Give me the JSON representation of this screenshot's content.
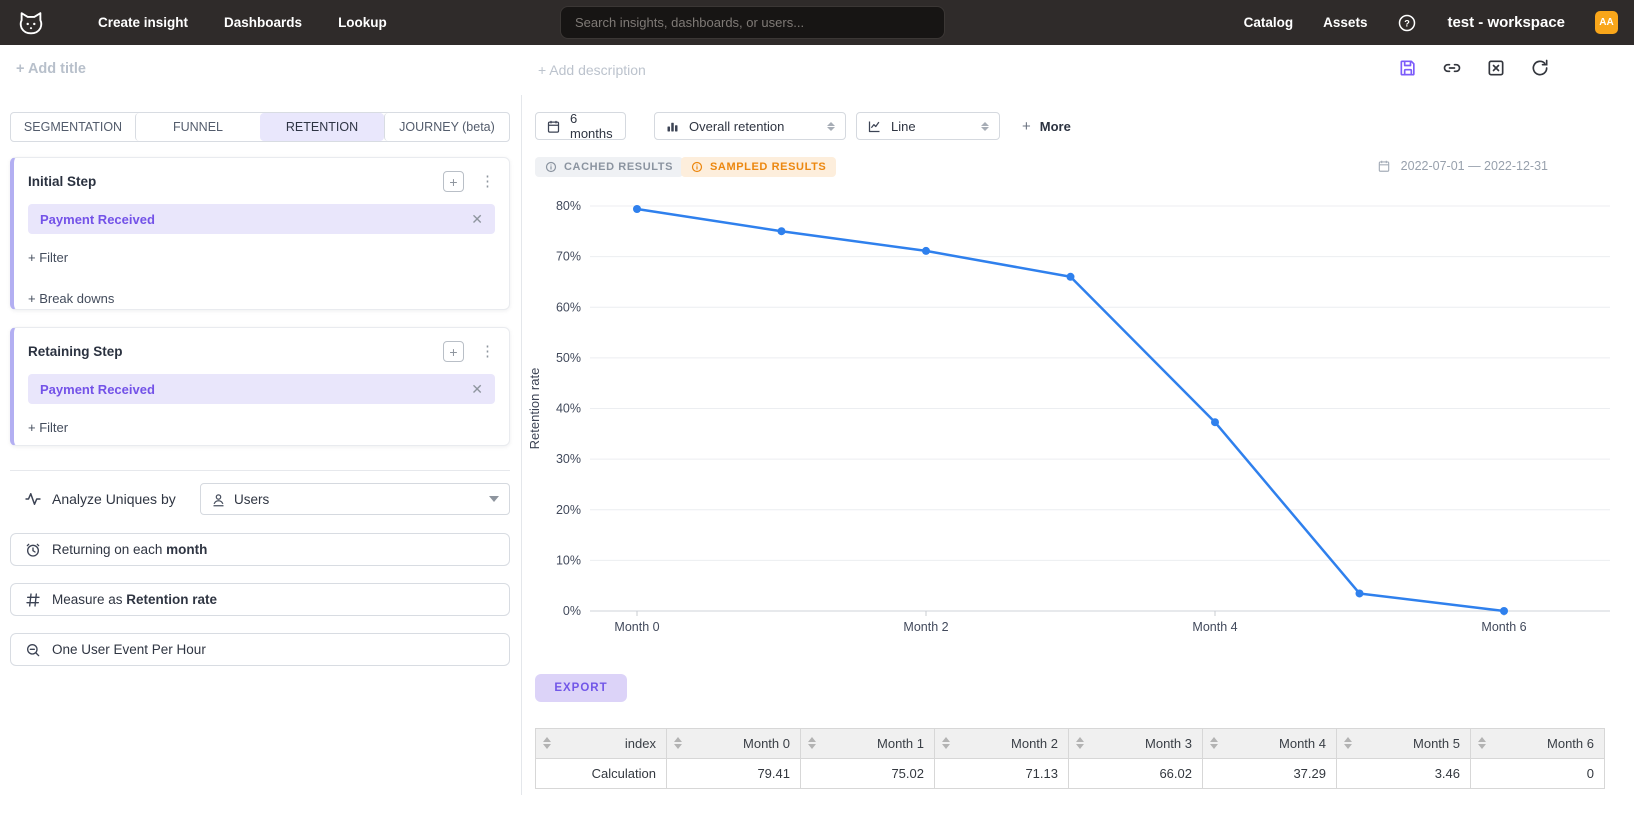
{
  "navbar": {
    "items": [
      "Create insight",
      "Dashboards",
      "Lookup"
    ],
    "search_placeholder": "Search insights, dashboards, or users...",
    "right_items": [
      "Catalog",
      "Assets"
    ],
    "workspace": "test - workspace",
    "avatar_initials": "AA",
    "avatar_color": "#f9a61a"
  },
  "header": {
    "add_title": "+ Add title",
    "add_description": "+ Add description"
  },
  "sidebar": {
    "tabs": [
      {
        "label": "SEGMENTATION",
        "active": false
      },
      {
        "label": "FUNNEL",
        "active": false
      },
      {
        "label": "RETENTION",
        "active": true
      },
      {
        "label": "JOURNEY (beta)",
        "active": false
      }
    ],
    "initial_step": {
      "title": "Initial Step",
      "event": "Payment Received",
      "filter_label": "+ Filter",
      "breakdowns_label": "+ Break downs"
    },
    "retaining_step": {
      "title": "Retaining Step",
      "event": "Payment Received",
      "filter_label": "+ Filter"
    },
    "analyze": {
      "label": "Analyze Uniques by",
      "value": "Users"
    },
    "returning": {
      "prefix": "Returning on each ",
      "bold": "month"
    },
    "measure": {
      "prefix": "Measure as ",
      "bold": "Retention rate"
    },
    "dedupe_label": "One User Event Per Hour"
  },
  "toolbar": {
    "period": "6 months",
    "metric": "Overall retention",
    "chart_type": "Line",
    "more_label": "More"
  },
  "status": {
    "cached": "CACHED RESULTS",
    "sampled": "SAMPLED RESULTS",
    "date_range": "2022-07-01 — 2022-12-31"
  },
  "chart_data": {
    "type": "line",
    "x": [
      "Month 0",
      "Month 1",
      "Month 2",
      "Month 3",
      "Month 4",
      "Month 5",
      "Month 6"
    ],
    "values": [
      79.41,
      75.02,
      71.13,
      66.02,
      37.29,
      3.46,
      0
    ],
    "x_axis_labels": [
      "Month 0",
      "Month 2",
      "Month 4",
      "Month 6"
    ],
    "yticks": [
      0,
      10,
      20,
      30,
      40,
      50,
      60,
      70,
      80
    ],
    "ytick_suffix": "%",
    "ylim": [
      0,
      84
    ],
    "ylabel": "Retention rate",
    "line_color": "#2f80ed",
    "grid": true,
    "legend": false
  },
  "export_label": "EXPORT",
  "table": {
    "columns": [
      "index",
      "Month 0",
      "Month 1",
      "Month 2",
      "Month 3",
      "Month 4",
      "Month 5",
      "Month 6"
    ],
    "rows": [
      [
        "Calculation",
        "79.41",
        "75.02",
        "71.13",
        "66.02",
        "37.29",
        "3.46",
        "0"
      ]
    ]
  }
}
